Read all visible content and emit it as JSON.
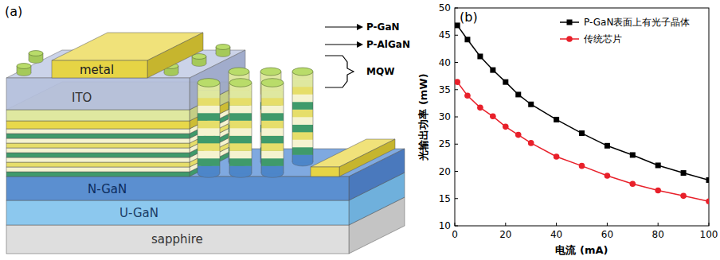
{
  "chart_data": {
    "type": "line",
    "annotations": [
      "(b)"
    ],
    "x_label": "电流 (mA)",
    "y_label": "光输出功率 (mW)",
    "x": [
      1,
      5,
      10,
      15,
      20,
      25,
      30,
      40,
      50,
      60,
      70,
      80,
      90,
      100
    ],
    "series": [
      {
        "name": "P-GaN表面上有光子晶体",
        "color": "#000000",
        "marker": "square",
        "values": [
          46.8,
          44.2,
          41.1,
          38.6,
          36.4,
          34.1,
          32.3,
          29.5,
          27.0,
          24.7,
          23.0,
          21.1,
          19.7,
          18.4
        ]
      },
      {
        "name": "传统芯片",
        "color": "#e8202a",
        "marker": "circle",
        "values": [
          36.4,
          33.9,
          31.7,
          30.1,
          28.2,
          26.7,
          25.2,
          22.7,
          21.0,
          19.2,
          17.7,
          16.5,
          15.5,
          14.5
        ]
      }
    ],
    "xlim": [
      0,
      100
    ],
    "xticks": [
      0,
      20,
      40,
      60,
      80,
      100
    ],
    "ylim": [
      10,
      50
    ],
    "yticks": [
      10,
      15,
      20,
      25,
      30,
      35,
      40,
      45,
      50
    ],
    "grid": false,
    "legend": "upper right"
  },
  "diagram": {
    "panel_label": "(a)",
    "labels": {
      "metal": "metal",
      "ito": "ITO",
      "p_gan": "P-GaN",
      "p_algan": "P-AlGaN",
      "mqw": "MQW",
      "n_gan": "N-GaN",
      "u_gan": "U-GaN",
      "sapphire": "sapphire"
    }
  }
}
